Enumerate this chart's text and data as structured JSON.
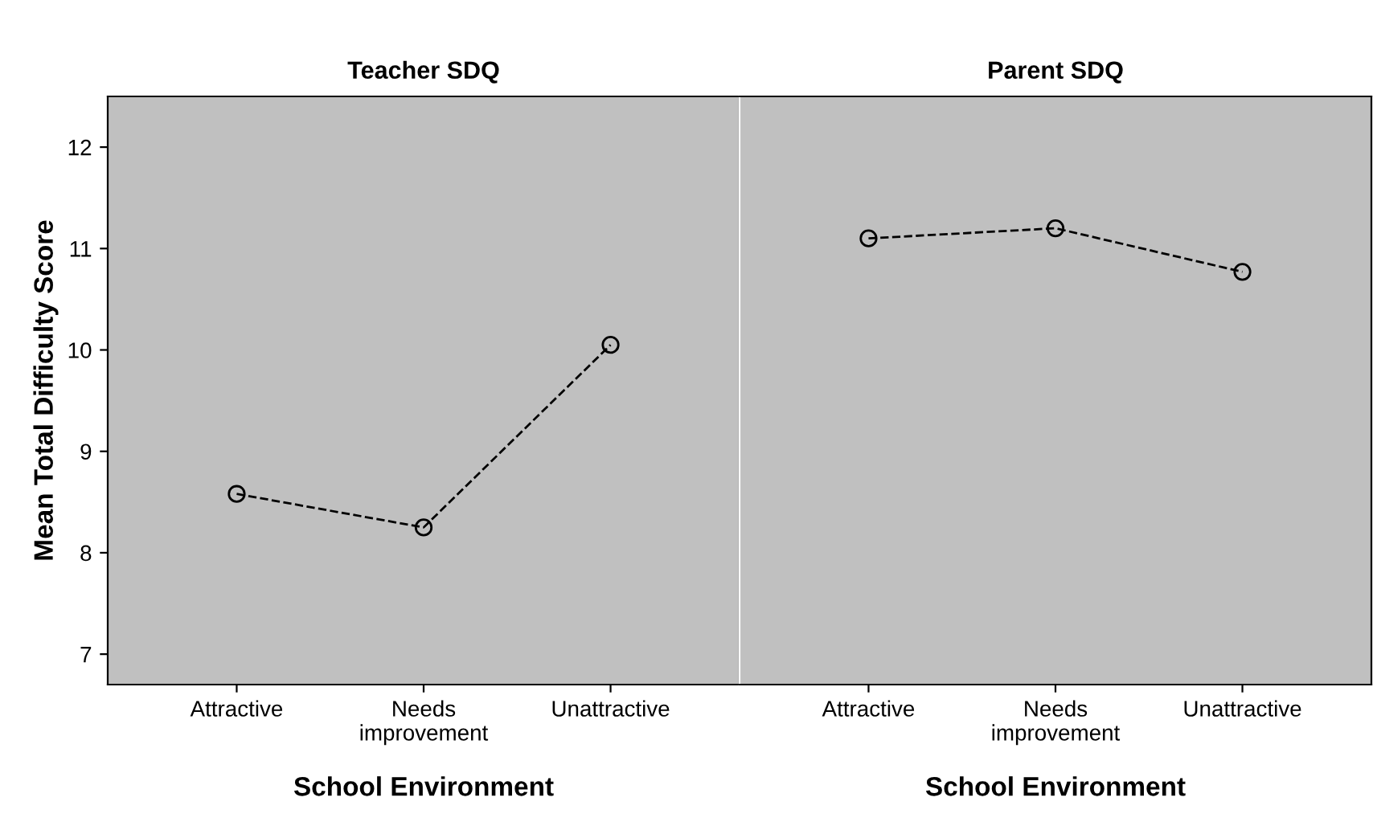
{
  "chart_data": [
    {
      "type": "line",
      "title": "Teacher SDQ",
      "xlabel": "School Environment",
      "ylabel": "Mean Total Difficulty Score",
      "categories": [
        "Attractive",
        "Needs improvement",
        "Unattractive"
      ],
      "series": [
        {
          "color": "#000000",
          "values": [
            8.58,
            8.25,
            10.05
          ]
        }
      ],
      "ylim": [
        6.7,
        12.5
      ],
      "yticks": [
        7,
        8,
        9,
        10,
        11,
        12
      ],
      "marker": "circle",
      "line_style": "dashed",
      "grid": false,
      "legend": false
    },
    {
      "type": "line",
      "title": "Parent SDQ",
      "xlabel": "School Environment",
      "categories": [
        "Attractive",
        "Needs improvement",
        "Unattractive"
      ],
      "series": [
        {
          "color": "#000000",
          "values": [
            11.1,
            11.2,
            10.77
          ]
        }
      ],
      "ylim": [
        6.7,
        12.5
      ],
      "tick_labels": "x",
      "marker": "circle",
      "line_style": "dashed",
      "grid": false,
      "legend": false
    }
  ]
}
